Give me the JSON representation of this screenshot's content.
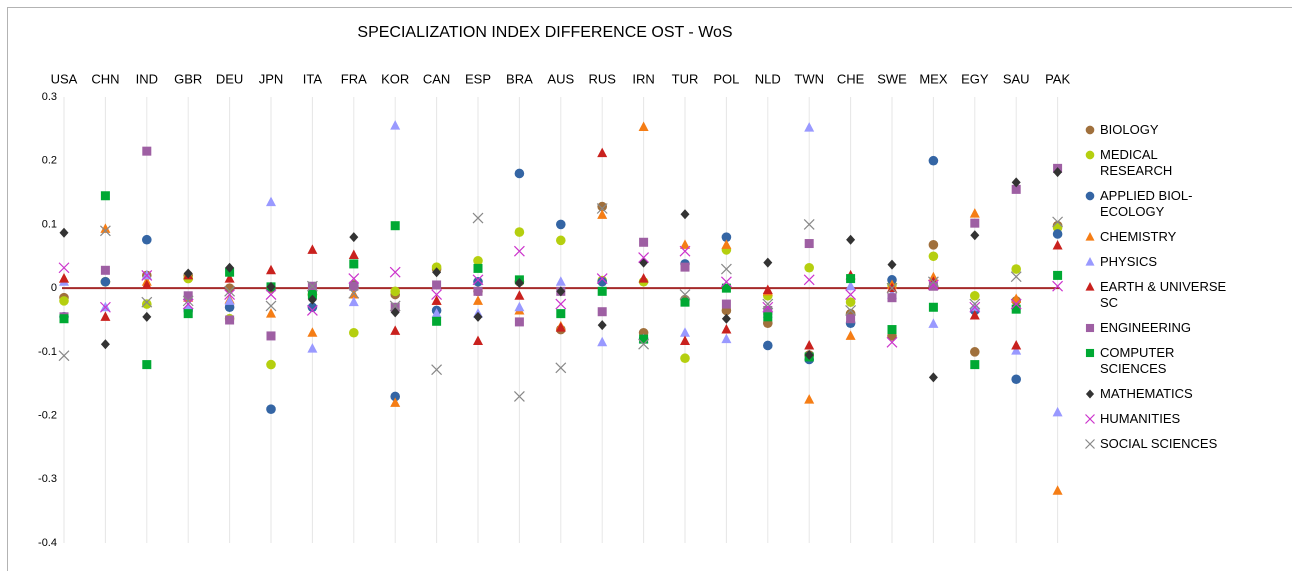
{
  "chart_data": {
    "type": "scatter",
    "title": "SPECIALIZATION INDEX DIFFERENCE OST - WoS",
    "categories": [
      "USA",
      "CHN",
      "IND",
      "GBR",
      "DEU",
      "JPN",
      "ITA",
      "FRA",
      "KOR",
      "CAN",
      "ESP",
      "BRA",
      "AUS",
      "RUS",
      "IRN",
      "TUR",
      "POL",
      "NLD",
      "TWN",
      "CHE",
      "SWE",
      "MEX",
      "EGY",
      "SAU",
      "PAK"
    ],
    "ylim": [
      -0.4,
      0.3
    ],
    "yticks": [
      0.3,
      0.2,
      0.1,
      0,
      -0.1,
      -0.2,
      -0.3,
      -0.4
    ],
    "zero_line_color": "#a52a2a",
    "series": [
      {
        "name": "BIOLOGY",
        "color": "#a0703c",
        "marker": "circle",
        "values": [
          -0.015,
          0.01,
          0.02,
          0.02,
          0,
          0,
          -0.01,
          0.005,
          -0.01,
          0.03,
          -0.005,
          0.01,
          -0.065,
          0.128,
          -0.07,
          -0.018,
          -0.035,
          -0.055,
          -0.105,
          -0.04,
          -0.075,
          0.068,
          -0.1,
          -0.02,
          0.098
        ]
      },
      {
        "name": "MEDICAL RESEARCH",
        "color": "#b5cf0f",
        "marker": "circle",
        "values": [
          -0.02,
          0.01,
          -0.025,
          0.015,
          -0.048,
          -0.12,
          -0.01,
          -0.07,
          -0.005,
          0.033,
          0.043,
          0.088,
          0.075,
          0.012,
          0.01,
          -0.11,
          0.06,
          -0.012,
          0.032,
          -0.022,
          0.005,
          0.05,
          -0.012,
          0.03,
          0.095
        ]
      },
      {
        "name": "APPLIED BIOL-ECOLOGY",
        "color": "#3465a4",
        "marker": "circle",
        "values": [
          -0.045,
          0.01,
          0.076,
          -0.035,
          -0.03,
          -0.19,
          -0.03,
          0.003,
          -0.17,
          -0.035,
          0.01,
          0.18,
          0.1,
          0.01,
          -0.08,
          0.038,
          0.08,
          -0.09,
          -0.112,
          -0.055,
          0.013,
          0.2,
          -0.035,
          -0.143,
          0.085
        ]
      },
      {
        "name": "CHEMISTRY",
        "color": "#f57d15",
        "marker": "triangle",
        "values": [
          0.015,
          0.093,
          0.01,
          -0.015,
          -0.018,
          -0.04,
          -0.07,
          -0.01,
          -0.18,
          -0.02,
          -0.02,
          -0.035,
          -0.06,
          0.115,
          0.253,
          0.068,
          0.068,
          -0.005,
          -0.175,
          -0.075,
          0.005,
          0.017,
          0.117,
          -0.017,
          -0.318
        ]
      },
      {
        "name": "PHYSICS",
        "color": "#9999ff",
        "marker": "triangle",
        "values": [
          0.01,
          -0.03,
          0.02,
          -0.03,
          -0.02,
          0.135,
          -0.095,
          -0.022,
          0.255,
          -0.04,
          -0.04,
          -0.03,
          0.01,
          -0.085,
          -0.08,
          -0.07,
          -0.08,
          -0.04,
          0.252,
          0.003,
          -0.01,
          -0.056,
          -0.03,
          -0.098,
          -0.195
        ]
      },
      {
        "name": "EARTH & UNIVERSE SC",
        "color": "#c9211e",
        "marker": "triangle",
        "values": [
          0.015,
          -0.045,
          0.005,
          0.02,
          0.015,
          0.028,
          0.06,
          0.052,
          -0.067,
          -0.02,
          -0.083,
          -0.012,
          -0.062,
          0.212,
          0.015,
          -0.083,
          -0.065,
          -0.003,
          -0.09,
          0.02,
          0,
          0.01,
          -0.043,
          -0.09,
          0.067
        ]
      },
      {
        "name": "ENGINEERING",
        "color": "#9e5fa3",
        "marker": "square",
        "values": [
          -0.045,
          0.028,
          0.215,
          -0.012,
          -0.05,
          -0.075,
          0.003,
          0.003,
          -0.03,
          0.005,
          -0.005,
          -0.053,
          -0.005,
          -0.037,
          0.072,
          0.033,
          -0.025,
          -0.035,
          0.07,
          -0.048,
          -0.015,
          0.003,
          0.102,
          0.155,
          0.188
        ]
      },
      {
        "name": "COMPUTER SCIENCES",
        "color": "#00a933",
        "marker": "square",
        "values": [
          -0.048,
          0.145,
          -0.12,
          -0.04,
          0.025,
          0.002,
          -0.01,
          0.038,
          0.098,
          -0.052,
          0.031,
          0.013,
          -0.04,
          -0.005,
          -0.08,
          -0.022,
          0,
          -0.045,
          -0.108,
          0.015,
          -0.065,
          -0.03,
          -0.12,
          -0.033,
          0.02
        ]
      },
      {
        "name": "MATHEMATICS",
        "color": "#333333",
        "marker": "diamond",
        "values": [
          0.087,
          -0.088,
          -0.045,
          0.023,
          0.032,
          0.002,
          -0.018,
          0.08,
          -0.038,
          0.025,
          -0.045,
          0.008,
          -0.005,
          -0.058,
          0.04,
          0.116,
          -0.048,
          0.04,
          -0.105,
          0.076,
          0.037,
          -0.14,
          0.083,
          0.166,
          0.182
        ]
      },
      {
        "name": "HUMANITIES",
        "color": "#cc33cc",
        "marker": "x",
        "values": [
          0.032,
          -0.03,
          0.02,
          -0.025,
          -0.01,
          -0.01,
          -0.035,
          0.015,
          0.025,
          -0.01,
          0.013,
          0.058,
          -0.025,
          0.015,
          0.048,
          0.058,
          0.01,
          -0.03,
          0.013,
          -0.01,
          -0.085,
          0.005,
          -0.03,
          -0.025,
          0.003
        ]
      },
      {
        "name": "SOCIAL SCIENCES",
        "color": "#888888",
        "marker": "x",
        "values": [
          -0.106,
          0.09,
          -0.022,
          -0.02,
          -0.005,
          -0.028,
          0.003,
          -0.008,
          -0.028,
          -0.128,
          0.11,
          -0.17,
          -0.125,
          0.125,
          -0.088,
          -0.01,
          0.03,
          -0.025,
          0.1,
          -0.035,
          0,
          0.01,
          -0.025,
          0.018,
          0.104
        ]
      }
    ]
  }
}
